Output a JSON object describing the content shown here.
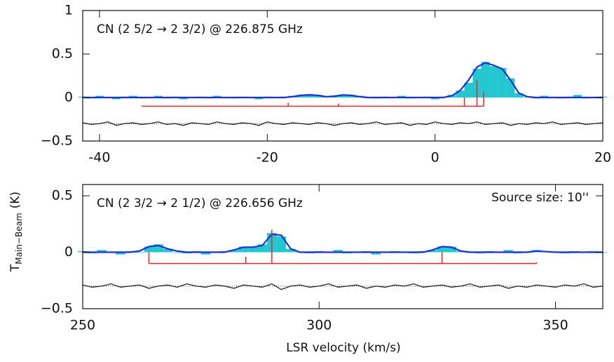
{
  "chart_data": [
    {
      "type": "spectrum",
      "title": "CN (2 5/2 → 2 3/2) @ 226.875 GHz",
      "xlim": [
        -42,
        20
      ],
      "xticks": [
        -40,
        -20,
        0,
        20
      ],
      "ylim": [
        -0.5,
        1
      ],
      "yticks": [
        -0.5,
        0,
        0.5,
        1
      ],
      "x": [
        -42,
        -41,
        -40,
        -39,
        -38,
        -37,
        -36,
        -35,
        -34,
        -33,
        -32,
        -31,
        -30,
        -29,
        -28,
        -27,
        -26,
        -25,
        -24,
        -23,
        -22,
        -21,
        -20,
        -19,
        -18,
        -17,
        -16,
        -15,
        -14,
        -13,
        -12,
        -11,
        -10,
        -9,
        -8,
        -7,
        -6,
        -5,
        -4,
        -3,
        -2,
        -1,
        0,
        1,
        2,
        3,
        4,
        5,
        6,
        7,
        8,
        9,
        10,
        11,
        12,
        13,
        14,
        15,
        16,
        17,
        18,
        19,
        20
      ],
      "series": [
        {
          "name": "observed",
          "color": "#22c7cf",
          "values": [
            0.01,
            -0.01,
            0.02,
            0,
            -0.02,
            0.01,
            0.02,
            -0.01,
            0,
            0.02,
            -0.01,
            0.01,
            -0.02,
            0,
            0.01,
            -0.01,
            0.02,
            0,
            -0.01,
            0.01,
            0,
            -0.02,
            0.01,
            0,
            0.01,
            0.02,
            0.03,
            0.04,
            0.03,
            0.01,
            0.02,
            0.03,
            0.03,
            0.02,
            0,
            -0.01,
            0.01,
            0,
            0.02,
            -0.01,
            0,
            0.01,
            -0.02,
            0.01,
            0.03,
            0.08,
            0.17,
            0.33,
            0.41,
            0.36,
            0.34,
            0.22,
            0.05,
            0.01,
            -0.01,
            0.02,
            0,
            -0.01,
            0.01,
            0.03,
            -0.01,
            0,
            0.01
          ]
        },
        {
          "name": "fit",
          "color": "#1f2fd6",
          "values": [
            0,
            0,
            0,
            0,
            0,
            0,
            0,
            0,
            0,
            0,
            0,
            0,
            0,
            0,
            0,
            0,
            0,
            0,
            0,
            0,
            0,
            0,
            0,
            0,
            0,
            0.01,
            0.025,
            0.03,
            0.025,
            0.01,
            0.015,
            0.03,
            0.025,
            0.01,
            0,
            0,
            0,
            0,
            0,
            0,
            0,
            0,
            0,
            0,
            0.02,
            0.08,
            0.2,
            0.35,
            0.4,
            0.37,
            0.33,
            0.2,
            0.05,
            0.01,
            0,
            0,
            0,
            0,
            0,
            0,
            0,
            0,
            0
          ]
        },
        {
          "name": "residual",
          "color": "#111111",
          "values": [
            -0.29,
            -0.31,
            -0.3,
            -0.28,
            -0.32,
            -0.3,
            -0.29,
            -0.31,
            -0.3,
            -0.28,
            -0.31,
            -0.3,
            -0.32,
            -0.29,
            -0.3,
            -0.31,
            -0.28,
            -0.3,
            -0.31,
            -0.29,
            -0.3,
            -0.32,
            -0.28,
            -0.3,
            -0.31,
            -0.29,
            -0.3,
            -0.31,
            -0.29,
            -0.3,
            -0.32,
            -0.3,
            -0.29,
            -0.31,
            -0.3,
            -0.28,
            -0.31,
            -0.3,
            -0.29,
            -0.32,
            -0.3,
            -0.31,
            -0.28,
            -0.3,
            -0.31,
            -0.29,
            -0.3,
            -0.28,
            -0.31,
            -0.3,
            -0.29,
            -0.32,
            -0.3,
            -0.31,
            -0.29,
            -0.3,
            -0.28,
            -0.31,
            -0.3,
            -0.29,
            -0.31,
            -0.3,
            -0.29
          ]
        }
      ],
      "residual_level": -0.3,
      "components": {
        "color": "#e8262a",
        "base": -0.1,
        "x": [
          -35,
          -17.5,
          -11.5,
          3.5,
          5,
          5.8
        ],
        "values": [
          -0.1,
          -0.06,
          -0.07,
          0,
          0.2,
          0.07
        ]
      }
    },
    {
      "type": "spectrum",
      "title": "CN (2 3/2 → 2 1/2) @ 226.656 GHz",
      "annotation": "Source size: 10''",
      "xlabel": "LSR velocity (km/s)",
      "ylabel": "T",
      "ylabel_sub": "Main−Beam",
      "ylabel_unit": "(K)",
      "xlim": [
        250,
        360
      ],
      "xticks": [
        250,
        300,
        350
      ],
      "ylim": [
        -0.5,
        0.6
      ],
      "yticks": [
        -0.5,
        0,
        0.5
      ],
      "x": [
        250,
        252,
        254,
        256,
        258,
        260,
        262,
        264,
        266,
        268,
        270,
        272,
        274,
        276,
        278,
        280,
        282,
        284,
        286,
        288,
        290,
        292,
        294,
        296,
        298,
        300,
        302,
        304,
        306,
        308,
        310,
        312,
        314,
        316,
        318,
        320,
        322,
        324,
        326,
        328,
        330,
        332,
        334,
        336,
        338,
        340,
        342,
        344,
        346,
        348,
        350,
        352,
        354,
        356,
        358,
        360
      ],
      "series": [
        {
          "name": "observed",
          "color": "#22c7cf",
          "values": [
            0.01,
            -0.01,
            0.02,
            0,
            -0.02,
            0.01,
            0,
            0.05,
            0.07,
            0.03,
            0,
            -0.01,
            0.01,
            -0.02,
            0,
            0.01,
            0.02,
            0.05,
            0.05,
            0.07,
            0.17,
            0.14,
            0.03,
            0,
            -0.01,
            0.01,
            0,
            0.02,
            -0.01,
            0,
            0.01,
            -0.02,
            0,
            0.01,
            0,
            -0.01,
            0.01,
            0.02,
            0.05,
            0.05,
            0.01,
            0,
            -0.01,
            0.01,
            0,
            0.02,
            -0.01,
            0,
            0.02,
            0.01,
            0,
            -0.01,
            0.01,
            0,
            0.01,
            0
          ]
        },
        {
          "name": "fit",
          "color": "#1f2fd6",
          "values": [
            0,
            0,
            0,
            0,
            0,
            0,
            0.01,
            0.05,
            0.06,
            0.03,
            0.01,
            0,
            0,
            0,
            0,
            0,
            0.02,
            0.045,
            0.045,
            0.06,
            0.16,
            0.15,
            0.03,
            0,
            0,
            0,
            0,
            0,
            0,
            0,
            0,
            0,
            0,
            0,
            0,
            0,
            0,
            0.02,
            0.05,
            0.045,
            0.01,
            0,
            0,
            0,
            0,
            0,
            0,
            0,
            0.01,
            0.005,
            0,
            0,
            0,
            0,
            0,
            0
          ]
        },
        {
          "name": "residual",
          "color": "#111111",
          "values": [
            -0.29,
            -0.31,
            -0.3,
            -0.28,
            -0.31,
            -0.3,
            -0.29,
            -0.32,
            -0.3,
            -0.29,
            -0.31,
            -0.28,
            -0.3,
            -0.31,
            -0.29,
            -0.3,
            -0.32,
            -0.29,
            -0.3,
            -0.31,
            -0.28,
            -0.33,
            -0.3,
            -0.29,
            -0.31,
            -0.3,
            -0.28,
            -0.31,
            -0.3,
            -0.29,
            -0.32,
            -0.3,
            -0.31,
            -0.29,
            -0.3,
            -0.28,
            -0.31,
            -0.3,
            -0.29,
            -0.31,
            -0.3,
            -0.28,
            -0.31,
            -0.3,
            -0.29,
            -0.32,
            -0.3,
            -0.31,
            -0.29,
            -0.3,
            -0.31,
            -0.29,
            -0.3,
            -0.28,
            -0.31,
            -0.3
          ]
        }
      ],
      "residual_level": -0.3,
      "components": {
        "color": "#e8262a",
        "base": -0.1,
        "x": [
          264,
          284.5,
          290,
          326,
          346
        ],
        "values": [
          0,
          -0.04,
          0.2,
          0,
          -0.09
        ]
      }
    }
  ]
}
